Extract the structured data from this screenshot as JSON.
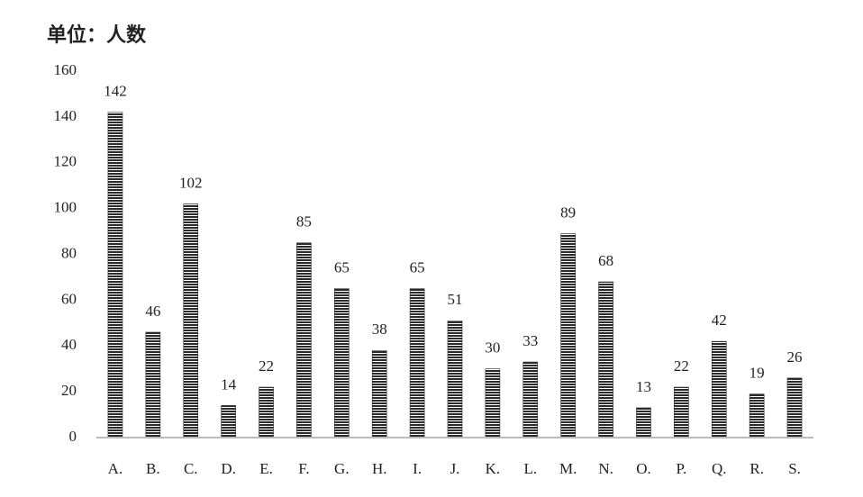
{
  "chart_data": {
    "type": "bar",
    "title": "单位：人数",
    "categories": [
      "A.",
      "B.",
      "C.",
      "D.",
      "E.",
      "F.",
      "G.",
      "H.",
      "I.",
      "J.",
      "K.",
      "L.",
      "M.",
      "N.",
      "O.",
      "P.",
      "Q.",
      "R.",
      "S."
    ],
    "values": [
      142,
      46,
      102,
      14,
      22,
      85,
      65,
      38,
      65,
      51,
      30,
      33,
      89,
      68,
      13,
      22,
      42,
      19,
      26
    ],
    "color": "#2b2b2b",
    "ylim": [
      0,
      160
    ],
    "yticks": [
      0,
      20,
      40,
      60,
      80,
      100,
      120,
      140,
      160
    ],
    "grid": false
  }
}
